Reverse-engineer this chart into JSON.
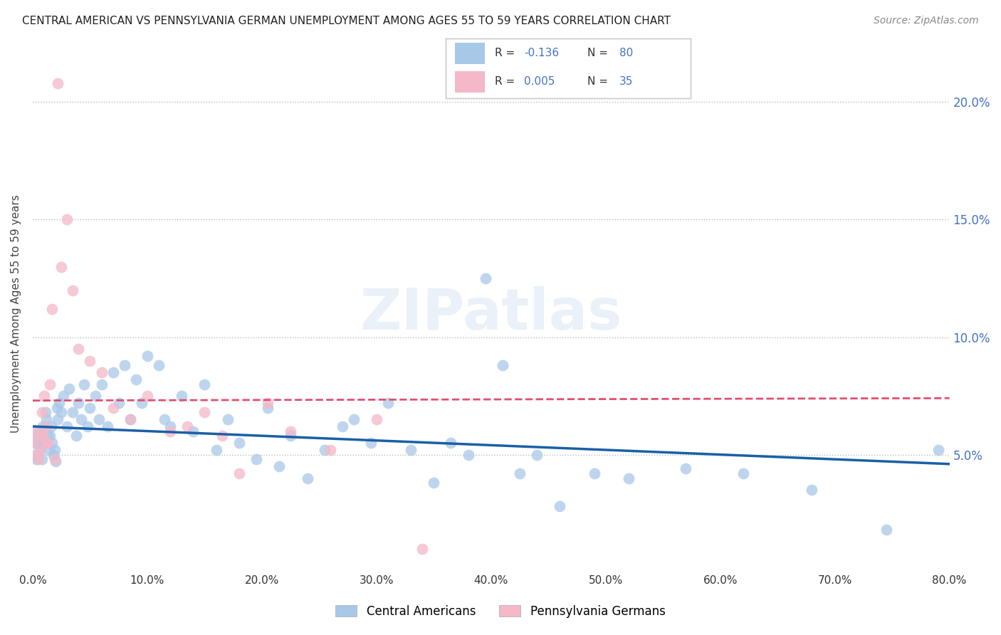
{
  "title": "CENTRAL AMERICAN VS PENNSYLVANIA GERMAN UNEMPLOYMENT AMONG AGES 55 TO 59 YEARS CORRELATION CHART",
  "source": "Source: ZipAtlas.com",
  "ylabel": "Unemployment Among Ages 55 to 59 years",
  "xlim": [
    0,
    0.8
  ],
  "ylim": [
    0,
    0.22
  ],
  "xticks": [
    0.0,
    0.1,
    0.2,
    0.3,
    0.4,
    0.5,
    0.6,
    0.7,
    0.8
  ],
  "xticklabels": [
    "0.0%",
    "10.0%",
    "20.0%",
    "30.0%",
    "40.0%",
    "50.0%",
    "60.0%",
    "70.0%",
    "80.0%"
  ],
  "yticks": [
    0.05,
    0.1,
    0.15,
    0.2
  ],
  "yticklabels": [
    "5.0%",
    "10.0%",
    "15.0%",
    "20.0%"
  ],
  "legend_r1": "R = -0.136",
  "legend_n1": "N = 80",
  "legend_r2": "R = 0.005",
  "legend_n2": "N = 35",
  "label1": "Central Americans",
  "label2": "Pennsylvania Germans",
  "blue_color": "#a8c8e8",
  "pink_color": "#f4b8c8",
  "blue_line_color": "#1a5fa8",
  "pink_line_color": "#e05070",
  "watermark": "ZIPatlas",
  "blue_trend_x": [
    0.0,
    0.8
  ],
  "blue_trend_y": [
    0.062,
    0.046
  ],
  "pink_trend_x": [
    0.0,
    0.8
  ],
  "pink_trend_y": [
    0.073,
    0.074
  ],
  "blue_x": [
    0.001,
    0.002,
    0.003,
    0.004,
    0.005,
    0.006,
    0.007,
    0.008,
    0.009,
    0.01,
    0.011,
    0.012,
    0.013,
    0.014,
    0.015,
    0.016,
    0.017,
    0.018,
    0.019,
    0.02,
    0.021,
    0.022,
    0.023,
    0.025,
    0.027,
    0.03,
    0.032,
    0.035,
    0.038,
    0.04,
    0.042,
    0.045,
    0.048,
    0.05,
    0.055,
    0.058,
    0.06,
    0.065,
    0.07,
    0.075,
    0.08,
    0.085,
    0.09,
    0.095,
    0.1,
    0.11,
    0.115,
    0.12,
    0.13,
    0.14,
    0.15,
    0.16,
    0.17,
    0.18,
    0.195,
    0.205,
    0.215,
    0.225,
    0.24,
    0.255,
    0.27,
    0.28,
    0.295,
    0.31,
    0.33,
    0.35,
    0.365,
    0.38,
    0.395,
    0.41,
    0.425,
    0.44,
    0.46,
    0.49,
    0.52,
    0.57,
    0.62,
    0.68,
    0.745,
    0.79
  ],
  "blue_y": [
    0.05,
    0.055,
    0.048,
    0.058,
    0.06,
    0.052,
    0.055,
    0.048,
    0.062,
    0.055,
    0.068,
    0.065,
    0.058,
    0.052,
    0.058,
    0.062,
    0.055,
    0.05,
    0.052,
    0.047,
    0.07,
    0.065,
    0.072,
    0.068,
    0.075,
    0.062,
    0.078,
    0.068,
    0.058,
    0.072,
    0.065,
    0.08,
    0.062,
    0.07,
    0.075,
    0.065,
    0.08,
    0.062,
    0.085,
    0.072,
    0.088,
    0.065,
    0.082,
    0.072,
    0.092,
    0.088,
    0.065,
    0.062,
    0.075,
    0.06,
    0.08,
    0.052,
    0.065,
    0.055,
    0.048,
    0.07,
    0.045,
    0.058,
    0.04,
    0.052,
    0.062,
    0.065,
    0.055,
    0.072,
    0.052,
    0.038,
    0.055,
    0.05,
    0.125,
    0.088,
    0.042,
    0.05,
    0.028,
    0.042,
    0.04,
    0.044,
    0.042,
    0.035,
    0.018,
    0.052
  ],
  "pink_x": [
    0.001,
    0.002,
    0.004,
    0.005,
    0.006,
    0.007,
    0.008,
    0.009,
    0.01,
    0.011,
    0.012,
    0.013,
    0.015,
    0.017,
    0.019,
    0.022,
    0.025,
    0.03,
    0.035,
    0.04,
    0.05,
    0.06,
    0.07,
    0.085,
    0.1,
    0.12,
    0.135,
    0.15,
    0.165,
    0.18,
    0.205,
    0.225,
    0.26,
    0.3,
    0.34
  ],
  "pink_y": [
    0.055,
    0.06,
    0.05,
    0.048,
    0.052,
    0.058,
    0.068,
    0.058,
    0.075,
    0.062,
    0.055,
    0.055,
    0.08,
    0.112,
    0.048,
    0.208,
    0.13,
    0.15,
    0.12,
    0.095,
    0.09,
    0.085,
    0.07,
    0.065,
    0.075,
    0.06,
    0.062,
    0.068,
    0.058,
    0.042,
    0.072,
    0.06,
    0.052,
    0.065,
    0.01
  ]
}
